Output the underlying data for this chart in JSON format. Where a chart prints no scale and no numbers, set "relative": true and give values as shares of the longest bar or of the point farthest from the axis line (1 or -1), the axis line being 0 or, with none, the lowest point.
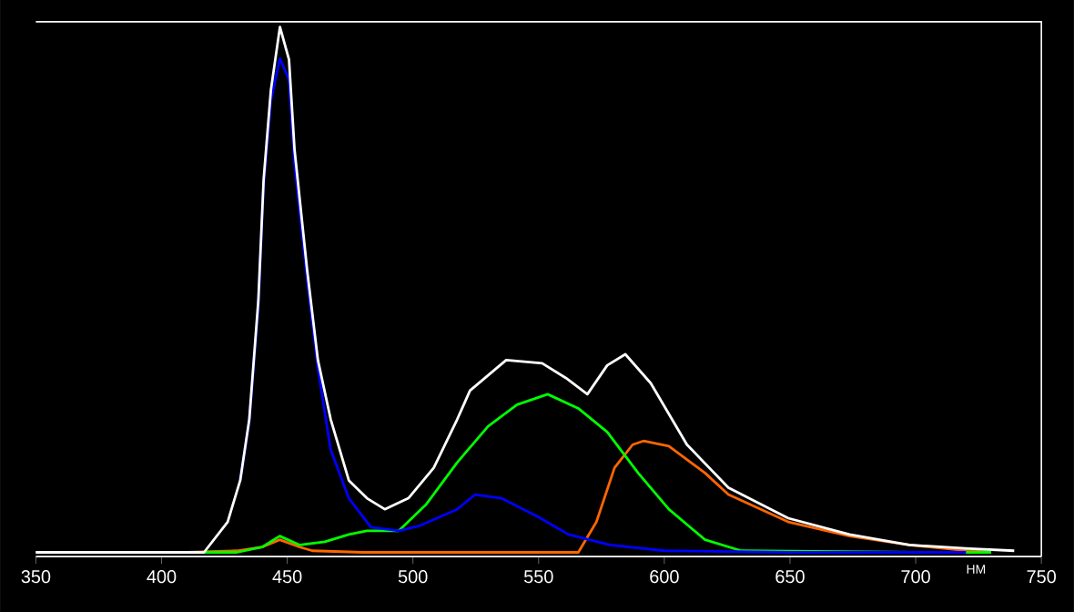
{
  "chart_data": {
    "type": "line",
    "relative": true,
    "xlabel": "НМ",
    "xlim": [
      350,
      750
    ],
    "xticks": [
      350,
      400,
      450,
      500,
      550,
      600,
      650,
      700,
      750
    ],
    "tick_labels": "x",
    "grid": false,
    "marker": "none",
    "line_style": "solid",
    "series": [
      {
        "color": "#ff6600",
        "x": [
          350,
          410,
          430,
          440,
          447,
          455,
          460,
          480,
          520,
          565.8,
          573,
          580.2,
          587.4,
          591.7,
          601.8,
          616.2,
          625.5,
          649.3,
          673.7,
          697.5,
          721.2,
          730
        ],
        "values": [
          0,
          0,
          0.003,
          0.01,
          0.024,
          0.01,
          0.003,
          0,
          0,
          0,
          0.058,
          0.161,
          0.205,
          0.212,
          0.202,
          0.151,
          0.11,
          0.058,
          0.031,
          0.014,
          0.003,
          0
        ]
      },
      {
        "color": "#00ff00",
        "x": [
          350,
          430,
          440,
          447,
          455,
          465,
          474.5,
          481.7,
          494.4,
          505.4,
          517.6,
          529.9,
          541.4,
          553.6,
          565.8,
          577.3,
          589.6,
          601.8,
          616.2,
          630.6,
          700,
          730
        ],
        "values": [
          0,
          0,
          0.01,
          0.031,
          0.014,
          0.02,
          0.034,
          0.041,
          0.041,
          0.092,
          0.171,
          0.24,
          0.281,
          0.301,
          0.274,
          0.229,
          0.151,
          0.082,
          0.024,
          0.003,
          0,
          0
        ]
      },
      {
        "color": "#0000ff",
        "x": [
          431.3,
          434.9,
          438.5,
          440.6,
          443.5,
          447.1,
          450.7,
          452.9,
          457.9,
          462.2,
          467.3,
          474.5,
          483.3,
          494.4,
          502.9,
          517.6,
          524.8,
          535.2,
          549.6,
          561.9,
          578.4,
          600,
          650,
          720
        ],
        "values": [
          0.137,
          0.25,
          0.47,
          0.7,
          0.86,
          0.94,
          0.9,
          0.74,
          0.52,
          0.35,
          0.195,
          0.103,
          0.048,
          0.041,
          0.051,
          0.082,
          0.11,
          0.103,
          0.068,
          0.034,
          0.014,
          0.003,
          0,
          0
        ]
      },
      {
        "color": "#ffffff",
        "x": [
          350,
          400,
          416.9,
          426.3,
          431.3,
          434.9,
          438.5,
          440.6,
          443.5,
          447.1,
          450.7,
          452.9,
          457.9,
          462.2,
          467.3,
          474.5,
          481.7,
          488.8,
          498.2,
          508.3,
          517.6,
          522.7,
          537.1,
          551.4,
          560.8,
          569.4,
          577.3,
          584.5,
          594.6,
          609,
          625.5,
          649.3,
          673.7,
          697.5,
          721.2,
          739.2
        ],
        "values": [
          0,
          0,
          0,
          0.058,
          0.137,
          0.253,
          0.479,
          0.709,
          0.88,
          1,
          0.938,
          0.767,
          0.538,
          0.366,
          0.253,
          0.137,
          0.103,
          0.082,
          0.103,
          0.161,
          0.253,
          0.308,
          0.366,
          0.36,
          0.332,
          0.301,
          0.356,
          0.377,
          0.322,
          0.205,
          0.123,
          0.065,
          0.034,
          0.014,
          0.007,
          0.003
        ]
      }
    ]
  }
}
